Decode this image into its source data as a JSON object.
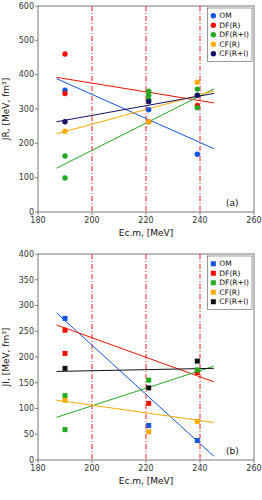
{
  "chart_data": [
    {
      "type": "scatter",
      "title": "(a)",
      "x_label": "Ec.m, [MeV]",
      "y_label": "JR, [MeV, fm³]",
      "xlim": [
        180,
        260
      ],
      "ylim": [
        0,
        600
      ],
      "xticks": [
        180,
        200,
        220,
        240,
        260
      ],
      "yticks": [
        0,
        100,
        200,
        300,
        400,
        500,
        600
      ],
      "grid": false,
      "legend": "upper right",
      "marker": "circle",
      "vlines": [
        200,
        220,
        240
      ],
      "vline_color": "red",
      "series": [
        {
          "name": "OM",
          "color": "#1155dd",
          "x": [
            190,
            221,
            239
          ],
          "values": [
            355,
            298,
            168
          ],
          "trend": {
            "x": [
              187,
              245
            ],
            "values": [
              388,
              185
            ]
          }
        },
        {
          "name": "DF(R)",
          "color": "#ee1100",
          "x": [
            190,
            190,
            221,
            239
          ],
          "values": [
            460,
            345,
            263,
            310
          ],
          "trend": {
            "x": [
              187,
              245
            ],
            "values": [
              392,
              318
            ]
          }
        },
        {
          "name": "DF(R+I)",
          "color": "#22aa22",
          "x": [
            190,
            190,
            221,
            221,
            221,
            239,
            239
          ],
          "values": [
            163,
            99,
            352,
            340,
            328,
            358,
            304
          ],
          "trend": {
            "x": [
              187,
              245
            ],
            "values": [
              128,
              358
            ]
          }
        },
        {
          "name": "CF(R)",
          "color": "#ffaa00",
          "x": [
            190,
            221,
            239
          ],
          "values": [
            235,
            263,
            378
          ],
          "trend": {
            "x": [
              187,
              245
            ],
            "values": [
              228,
              352
            ]
          }
        },
        {
          "name": "CF(R+I)",
          "color": "#111166",
          "x": [
            190,
            221,
            239
          ],
          "values": [
            263,
            322,
            340
          ],
          "trend": {
            "x": [
              187,
              245
            ],
            "values": [
              263,
              345
            ]
          }
        }
      ]
    },
    {
      "type": "scatter",
      "title": "(b)",
      "x_label": "Ec.m, [MeV]",
      "y_label": "JI, [MeV, fm³]",
      "xlim": [
        180,
        260
      ],
      "ylim": [
        0,
        400
      ],
      "xticks": [
        180,
        200,
        220,
        240,
        260
      ],
      "yticks": [
        0,
        50,
        100,
        150,
        200,
        250,
        300,
        350,
        400
      ],
      "grid": false,
      "legend": "upper right",
      "marker": "square",
      "vlines": [
        200,
        220,
        240
      ],
      "vline_color": "red",
      "series": [
        {
          "name": "OM",
          "color": "#1155dd",
          "x": [
            190,
            221,
            239
          ],
          "values": [
            275,
            67,
            38
          ],
          "trend": {
            "x": [
              187,
              245
            ],
            "values": [
              285,
              8
            ]
          }
        },
        {
          "name": "DF(R)",
          "color": "#ee1100",
          "x": [
            190,
            190,
            221,
            239
          ],
          "values": [
            252,
            207,
            110,
            170
          ],
          "trend": {
            "x": [
              187,
              245
            ],
            "values": [
              262,
              152
            ]
          }
        },
        {
          "name": "DF(R+I)",
          "color": "#22aa22",
          "x": [
            190,
            190,
            221,
            239
          ],
          "values": [
            125,
            59,
            155,
            175
          ],
          "trend": {
            "x": [
              187,
              245
            ],
            "values": [
              83,
              182
            ]
          }
        },
        {
          "name": "CF(R)",
          "color": "#ffaa00",
          "x": [
            190,
            221,
            239
          ],
          "values": [
            116,
            55,
            75
          ],
          "trend": {
            "x": [
              187,
              245
            ],
            "values": [
              116,
              73
            ]
          }
        },
        {
          "name": "CF(R+I)",
          "color": "#111111",
          "x": [
            190,
            221,
            239
          ],
          "values": [
            178,
            140,
            192
          ],
          "trend": {
            "x": [
              187,
              245
            ],
            "values": [
              172,
              178
            ]
          }
        }
      ]
    }
  ]
}
